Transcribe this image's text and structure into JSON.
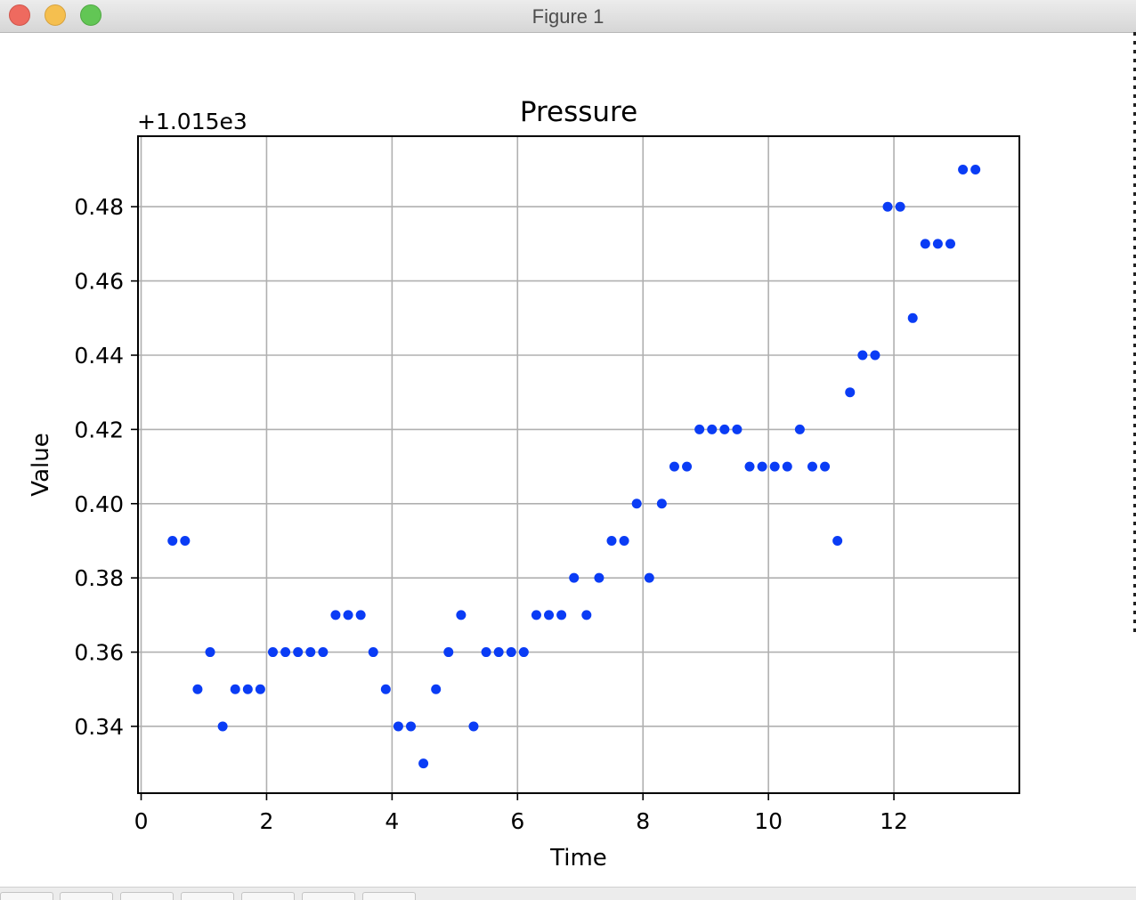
{
  "window": {
    "title": "Figure 1"
  },
  "colors": {
    "marker": "#0a3cf5",
    "grid": "#b0b0b0",
    "axes": "#000000"
  },
  "chart_data": {
    "type": "scatter",
    "title": "Pressure",
    "xlabel": "Time",
    "ylabel": "Value",
    "offset_label": "+1.015e3",
    "xlim": [
      -0.05,
      14.0
    ],
    "ylim": [
      0.322,
      0.499
    ],
    "xticks": [
      0,
      2,
      4,
      6,
      8,
      10,
      12
    ],
    "yticks": [
      0.34,
      0.36,
      0.38,
      0.4,
      0.42,
      0.44,
      0.46,
      0.48
    ],
    "ytick_labels": [
      "0.34",
      "0.36",
      "0.38",
      "0.40",
      "0.42",
      "0.44",
      "0.46",
      "0.48"
    ],
    "grid": true,
    "series": [
      {
        "x": [
          0.5,
          0.7,
          0.9,
          1.1,
          1.3,
          1.5,
          1.7,
          1.9,
          2.1,
          2.3,
          2.5,
          2.7,
          2.9,
          3.1,
          3.3,
          3.5,
          3.7,
          3.9,
          4.1,
          4.3,
          4.5,
          4.7,
          4.9,
          5.1,
          5.3,
          5.5,
          5.7,
          5.9,
          6.1,
          6.3,
          6.5,
          6.7,
          6.9,
          7.1,
          7.3,
          7.5,
          7.7,
          7.9,
          8.1,
          8.3,
          8.5,
          8.7,
          8.9,
          9.1,
          9.3,
          9.5,
          9.7,
          9.9,
          10.1,
          10.3,
          10.5,
          10.7,
          10.9,
          11.1,
          11.3,
          11.5,
          11.7,
          11.9,
          12.1,
          12.3,
          12.5,
          12.7,
          12.9,
          13.1,
          13.3
        ],
        "y": [
          0.39,
          0.39,
          0.35,
          0.36,
          0.34,
          0.35,
          0.35,
          0.35,
          0.36,
          0.36,
          0.36,
          0.36,
          0.36,
          0.37,
          0.37,
          0.37,
          0.36,
          0.35,
          0.34,
          0.34,
          0.33,
          0.35,
          0.36,
          0.37,
          0.34,
          0.36,
          0.36,
          0.36,
          0.36,
          0.37,
          0.37,
          0.37,
          0.38,
          0.37,
          0.38,
          0.39,
          0.39,
          0.4,
          0.38,
          0.4,
          0.41,
          0.41,
          0.42,
          0.42,
          0.42,
          0.42,
          0.41,
          0.41,
          0.41,
          0.41,
          0.42,
          0.41,
          0.41,
          0.39,
          0.43,
          0.44,
          0.44,
          0.48,
          0.48,
          0.45,
          0.47,
          0.47,
          0.47,
          0.49,
          0.49
        ]
      }
    ]
  }
}
